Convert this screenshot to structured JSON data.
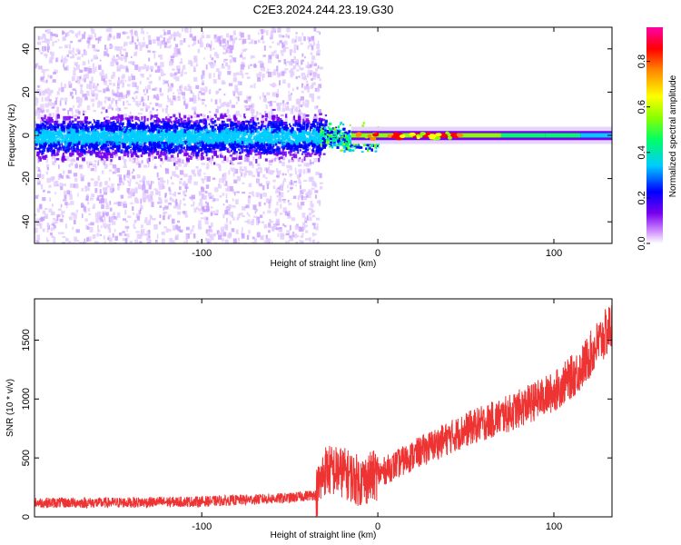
{
  "title": "C2E3.2024.244.23.19.G30",
  "chart_data": [
    {
      "type": "heatmap",
      "xlabel": "Height of straight line (km)",
      "ylabel": "Frequency (Hz)",
      "xlim": [
        -195,
        133
      ],
      "ylim": [
        -50,
        50
      ],
      "xticks": [
        -100,
        0,
        100
      ],
      "xtick_labels": [
        "-100",
        "0",
        "100"
      ],
      "yticks": [
        -40,
        -20,
        0,
        20,
        40
      ],
      "ytick_labels": [
        "-40",
        "-20",
        "0",
        "20",
        "40"
      ],
      "colorbar": {
        "label": "Normalized spectral amplitude",
        "range": [
          0,
          0.95
        ],
        "ticks": [
          0.0,
          0.2,
          0.4,
          0.6,
          0.8
        ],
        "tick_labels": [
          "0.0",
          "0.2",
          "0.4",
          "0.6",
          "0.8"
        ],
        "colors": [
          "#ffffff",
          "#cc88ff",
          "#7700ee",
          "#0000ff",
          "#00ccff",
          "#00ff66",
          "#88ff00",
          "#ffff00",
          "#ff8800",
          "#ff0000",
          "#ff00aa"
        ]
      },
      "description_of_distribution": {
        "signal_band_center_hz": 0,
        "scattered_noise_region_x": [
          -195,
          -35
        ],
        "concentrated_region_x": [
          -15,
          133
        ]
      }
    },
    {
      "type": "line",
      "xlabel": "Height of straight line (km)",
      "ylabel": "SNR (10 * v/v)",
      "xlim": [
        -195,
        133
      ],
      "ylim": [
        0,
        1850
      ],
      "xticks": [
        -100,
        0,
        100
      ],
      "xtick_labels": [
        "-100",
        "0",
        "100"
      ],
      "yticks": [
        0,
        500,
        1000,
        1500
      ],
      "ytick_labels": [
        "0",
        "500",
        "1000",
        "1500"
      ],
      "color": "#ee3333",
      "trend_points": [
        {
          "x": -195,
          "y": 120
        },
        {
          "x": -150,
          "y": 120
        },
        {
          "x": -100,
          "y": 130
        },
        {
          "x": -50,
          "y": 160
        },
        {
          "x": -35,
          "y": 190
        },
        {
          "x": -30,
          "y": 400
        },
        {
          "x": -20,
          "y": 380
        },
        {
          "x": -10,
          "y": 300
        },
        {
          "x": 0,
          "y": 360
        },
        {
          "x": 10,
          "y": 440
        },
        {
          "x": 25,
          "y": 560
        },
        {
          "x": 50,
          "y": 740
        },
        {
          "x": 75,
          "y": 880
        },
        {
          "x": 100,
          "y": 1060
        },
        {
          "x": 115,
          "y": 1250
        },
        {
          "x": 125,
          "y": 1470
        },
        {
          "x": 133,
          "y": 1620
        }
      ]
    }
  ]
}
